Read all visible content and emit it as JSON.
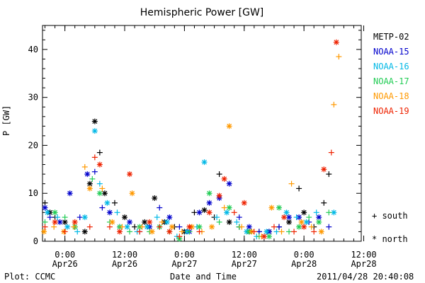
{
  "chart_data": {
    "type": "scatter",
    "title": "Hemispheric Power [GW]",
    "xlabel": "Date and Time",
    "ylabel": "P [GW]",
    "ylim": [
      0,
      45
    ],
    "xlim_hours": [
      -4.5,
      59.5
    ],
    "y_ticks": [
      0,
      10,
      20,
      30,
      40
    ],
    "x_ticks": [
      {
        "hour": 0,
        "time": "0:00",
        "date": "Apr26"
      },
      {
        "hour": 12,
        "time": "12:00",
        "date": "Apr26"
      },
      {
        "hour": 24,
        "time": "0:00",
        "date": "Apr27"
      },
      {
        "hour": 36,
        "time": "12:00",
        "date": "Apr27"
      },
      {
        "hour": 48,
        "time": "0:00",
        "date": "Apr28"
      },
      {
        "hour": 60,
        "time": "12:00",
        "date": "Apr28"
      }
    ],
    "legend_position": "right",
    "marker_key": {
      "south": "+ south",
      "north": "* north"
    },
    "series": [
      {
        "name": "METP-02",
        "color": "#000000",
        "points": [
          {
            "x": -4,
            "y": 8,
            "h": "S"
          },
          {
            "x": -3,
            "y": 6,
            "h": "N"
          },
          {
            "x": -2,
            "y": 5,
            "h": "S"
          },
          {
            "x": 0,
            "y": 4,
            "h": "N"
          },
          {
            "x": 2,
            "y": 3,
            "h": "S"
          },
          {
            "x": 4,
            "y": 2,
            "h": "N"
          },
          {
            "x": 5,
            "y": 12,
            "h": "N"
          },
          {
            "x": 6,
            "y": 25,
            "h": "N"
          },
          {
            "x": 7,
            "y": 18.5,
            "h": "S"
          },
          {
            "x": 8,
            "y": 10,
            "h": "N"
          },
          {
            "x": 10,
            "y": 8,
            "h": "S"
          },
          {
            "x": 12,
            "y": 5,
            "h": "N"
          },
          {
            "x": 14,
            "y": 3,
            "h": "S"
          },
          {
            "x": 16,
            "y": 4,
            "h": "N"
          },
          {
            "x": 18,
            "y": 9,
            "h": "N"
          },
          {
            "x": 20,
            "y": 4,
            "h": "N"
          },
          {
            "x": 22,
            "y": 3,
            "h": "S"
          },
          {
            "x": 24,
            "y": 2,
            "h": "N"
          },
          {
            "x": 26,
            "y": 6,
            "h": "S"
          },
          {
            "x": 28,
            "y": 6.5,
            "h": "N"
          },
          {
            "x": 30,
            "y": 5,
            "h": "S"
          },
          {
            "x": 31,
            "y": 14,
            "h": "S"
          },
          {
            "x": 33,
            "y": 4,
            "h": "N"
          },
          {
            "x": 35,
            "y": 3,
            "h": "S"
          },
          {
            "x": 37,
            "y": 2,
            "h": "N"
          },
          {
            "x": 39,
            "y": 2,
            "h": "S"
          },
          {
            "x": 41,
            "y": 2,
            "h": "N"
          },
          {
            "x": 43,
            "y": 3,
            "h": "S"
          },
          {
            "x": 45,
            "y": 4,
            "h": "N"
          },
          {
            "x": 47,
            "y": 11,
            "h": "S"
          },
          {
            "x": 48,
            "y": 6,
            "h": "N"
          },
          {
            "x": 50,
            "y": 3,
            "h": "S"
          },
          {
            "x": 52,
            "y": 8,
            "h": "S"
          },
          {
            "x": 53,
            "y": 14,
            "h": "S"
          }
        ]
      },
      {
        "name": "NOAA-15",
        "color": "#0000cc",
        "points": [
          {
            "x": -4,
            "y": 7,
            "h": "N"
          },
          {
            "x": -3,
            "y": 5,
            "h": "S"
          },
          {
            "x": -1,
            "y": 4,
            "h": "N"
          },
          {
            "x": 1,
            "y": 10,
            "h": "N"
          },
          {
            "x": 3,
            "y": 5,
            "h": "S"
          },
          {
            "x": 4.5,
            "y": 14,
            "h": "N"
          },
          {
            "x": 6,
            "y": 14.5,
            "h": "S"
          },
          {
            "x": 7.5,
            "y": 7,
            "h": "S"
          },
          {
            "x": 9,
            "y": 6,
            "h": "N"
          },
          {
            "x": 11,
            "y": 3,
            "h": "S"
          },
          {
            "x": 13,
            "y": 4,
            "h": "N"
          },
          {
            "x": 15,
            "y": 2,
            "h": "S"
          },
          {
            "x": 17,
            "y": 3,
            "h": "N"
          },
          {
            "x": 19,
            "y": 7,
            "h": "S"
          },
          {
            "x": 21,
            "y": 5,
            "h": "N"
          },
          {
            "x": 23,
            "y": 3,
            "h": "S"
          },
          {
            "x": 25,
            "y": 2,
            "h": "N"
          },
          {
            "x": 27,
            "y": 6,
            "h": "N"
          },
          {
            "x": 29,
            "y": 8,
            "h": "N"
          },
          {
            "x": 31,
            "y": 9,
            "h": "N"
          },
          {
            "x": 33,
            "y": 12,
            "h": "N"
          },
          {
            "x": 35,
            "y": 5,
            "h": "S"
          },
          {
            "x": 37,
            "y": 3,
            "h": "N"
          },
          {
            "x": 39,
            "y": 2,
            "h": "S"
          },
          {
            "x": 41,
            "y": 2,
            "h": "N"
          },
          {
            "x": 43,
            "y": 3,
            "h": "S"
          },
          {
            "x": 45,
            "y": 5,
            "h": "N"
          },
          {
            "x": 47,
            "y": 5,
            "h": "N"
          },
          {
            "x": 49,
            "y": 4,
            "h": "S"
          },
          {
            "x": 51,
            "y": 5,
            "h": "N"
          },
          {
            "x": 53,
            "y": 3,
            "h": "S"
          }
        ]
      },
      {
        "name": "NOAA-16",
        "color": "#00b8e6",
        "points": [
          {
            "x": -3.5,
            "y": 6,
            "h": "N"
          },
          {
            "x": -1.5,
            "y": 5,
            "h": "S"
          },
          {
            "x": 0.5,
            "y": 3,
            "h": "N"
          },
          {
            "x": 2.5,
            "y": 2,
            "h": "S"
          },
          {
            "x": 4,
            "y": 5,
            "h": "N"
          },
          {
            "x": 6,
            "y": 23,
            "h": "N"
          },
          {
            "x": 7,
            "y": 12,
            "h": "S"
          },
          {
            "x": 8.5,
            "y": 8,
            "h": "N"
          },
          {
            "x": 10.5,
            "y": 6,
            "h": "S"
          },
          {
            "x": 12.5,
            "y": 3,
            "h": "N"
          },
          {
            "x": 14.5,
            "y": 2,
            "h": "S"
          },
          {
            "x": 16.5,
            "y": 3,
            "h": "N"
          },
          {
            "x": 18.5,
            "y": 5,
            "h": "S"
          },
          {
            "x": 20.5,
            "y": 4,
            "h": "N"
          },
          {
            "x": 22.5,
            "y": 1,
            "h": "S"
          },
          {
            "x": 24.5,
            "y": 2,
            "h": "N"
          },
          {
            "x": 26.5,
            "y": 3,
            "h": "S"
          },
          {
            "x": 28,
            "y": 16.5,
            "h": "N"
          },
          {
            "x": 30.5,
            "y": 5,
            "h": "S"
          },
          {
            "x": 32.5,
            "y": 6,
            "h": "N"
          },
          {
            "x": 34.5,
            "y": 4,
            "h": "S"
          },
          {
            "x": 36.5,
            "y": 2,
            "h": "N"
          },
          {
            "x": 38.5,
            "y": 1,
            "h": "S"
          },
          {
            "x": 40.5,
            "y": 2,
            "h": "N"
          },
          {
            "x": 42.5,
            "y": 2,
            "h": "S"
          },
          {
            "x": 44.5,
            "y": 6,
            "h": "N"
          },
          {
            "x": 46.5,
            "y": 5,
            "h": "S"
          },
          {
            "x": 48.5,
            "y": 4,
            "h": "N"
          },
          {
            "x": 50.5,
            "y": 6,
            "h": "S"
          },
          {
            "x": 54,
            "y": 6,
            "h": "N"
          }
        ]
      },
      {
        "name": "NOAA-17",
        "color": "#22cc55",
        "points": [
          {
            "x": -4,
            "y": 4,
            "h": "S"
          },
          {
            "x": -2,
            "y": 6,
            "h": "N"
          },
          {
            "x": 0,
            "y": 5,
            "h": "S"
          },
          {
            "x": 2,
            "y": 3,
            "h": "N"
          },
          {
            "x": 5.5,
            "y": 13,
            "h": "S"
          },
          {
            "x": 7,
            "y": 10,
            "h": "N"
          },
          {
            "x": 9,
            "y": 4,
            "h": "S"
          },
          {
            "x": 11,
            "y": 3,
            "h": "N"
          },
          {
            "x": 13,
            "y": 2,
            "h": "S"
          },
          {
            "x": 15,
            "y": 3,
            "h": "N"
          },
          {
            "x": 17,
            "y": 2,
            "h": "S"
          },
          {
            "x": 19,
            "y": 3,
            "h": "N"
          },
          {
            "x": 21,
            "y": 2,
            "h": "S"
          },
          {
            "x": 23,
            "y": 0.5,
            "h": "N"
          },
          {
            "x": 25,
            "y": 2,
            "h": "S"
          },
          {
            "x": 27,
            "y": 3,
            "h": "N"
          },
          {
            "x": 29,
            "y": 10,
            "h": "N"
          },
          {
            "x": 31,
            "y": 4,
            "h": "S"
          },
          {
            "x": 33,
            "y": 7,
            "h": "N"
          },
          {
            "x": 35,
            "y": 3,
            "h": "S"
          },
          {
            "x": 37,
            "y": 2,
            "h": "N"
          },
          {
            "x": 39,
            "y": 1,
            "h": "S"
          },
          {
            "x": 41,
            "y": 1,
            "h": "N"
          },
          {
            "x": 43,
            "y": 7,
            "h": "N"
          },
          {
            "x": 45,
            "y": 2,
            "h": "S"
          },
          {
            "x": 47,
            "y": 3,
            "h": "N"
          },
          {
            "x": 49,
            "y": 5,
            "h": "S"
          },
          {
            "x": 51,
            "y": 4,
            "h": "N"
          },
          {
            "x": 53,
            "y": 6,
            "h": "S"
          }
        ]
      },
      {
        "name": "NOAA-18",
        "color": "#ff9900",
        "points": [
          {
            "x": -4.2,
            "y": 2,
            "h": "N"
          },
          {
            "x": -2.2,
            "y": 3,
            "h": "S"
          },
          {
            "x": -0.2,
            "y": 2,
            "h": "N"
          },
          {
            "x": 1.8,
            "y": 3,
            "h": "S"
          },
          {
            "x": 4,
            "y": 15.5,
            "h": "S"
          },
          {
            "x": 5,
            "y": 11,
            "h": "N"
          },
          {
            "x": 7.5,
            "y": 11,
            "h": "S"
          },
          {
            "x": 9.5,
            "y": 4,
            "h": "N"
          },
          {
            "x": 11.5,
            "y": 3,
            "h": "S"
          },
          {
            "x": 13.5,
            "y": 10,
            "h": "N"
          },
          {
            "x": 15.5,
            "y": 3,
            "h": "S"
          },
          {
            "x": 17.5,
            "y": 2,
            "h": "N"
          },
          {
            "x": 19.5,
            "y": 4,
            "h": "S"
          },
          {
            "x": 21.5,
            "y": 3,
            "h": "N"
          },
          {
            "x": 23.5,
            "y": 2,
            "h": "S"
          },
          {
            "x": 25.5,
            "y": 3,
            "h": "N"
          },
          {
            "x": 27.5,
            "y": 2,
            "h": "S"
          },
          {
            "x": 29.5,
            "y": 3,
            "h": "N"
          },
          {
            "x": 32,
            "y": 7,
            "h": "S"
          },
          {
            "x": 33,
            "y": 24,
            "h": "N"
          },
          {
            "x": 35.5,
            "y": 3,
            "h": "S"
          },
          {
            "x": 37.5,
            "y": 2,
            "h": "N"
          },
          {
            "x": 39.5,
            "y": 1,
            "h": "S"
          },
          {
            "x": 41.5,
            "y": 7,
            "h": "N"
          },
          {
            "x": 43.5,
            "y": 2,
            "h": "S"
          },
          {
            "x": 45.5,
            "y": 12,
            "h": "S"
          },
          {
            "x": 47.5,
            "y": 4,
            "h": "N"
          },
          {
            "x": 49.5,
            "y": 3,
            "h": "S"
          },
          {
            "x": 51.5,
            "y": 2,
            "h": "N"
          },
          {
            "x": 54,
            "y": 28.5,
            "h": "S"
          },
          {
            "x": 55,
            "y": 38.5,
            "h": "S"
          }
        ]
      },
      {
        "name": "NOAA-19",
        "color": "#ee2200",
        "points": [
          {
            "x": -4,
            "y": 3,
            "h": "S"
          },
          {
            "x": -2,
            "y": 4,
            "h": "N"
          },
          {
            "x": 0,
            "y": 2,
            "h": "S"
          },
          {
            "x": 2,
            "y": 4,
            "h": "N"
          },
          {
            "x": 5,
            "y": 3,
            "h": "S"
          },
          {
            "x": 6,
            "y": 17.5,
            "h": "S"
          },
          {
            "x": 7,
            "y": 16,
            "h": "N"
          },
          {
            "x": 9,
            "y": 3,
            "h": "S"
          },
          {
            "x": 11,
            "y": 2,
            "h": "N"
          },
          {
            "x": 13,
            "y": 14,
            "h": "N"
          },
          {
            "x": 15,
            "y": 2,
            "h": "S"
          },
          {
            "x": 17,
            "y": 4,
            "h": "N"
          },
          {
            "x": 19,
            "y": 3,
            "h": "S"
          },
          {
            "x": 21,
            "y": 2,
            "h": "N"
          },
          {
            "x": 23,
            "y": 1,
            "h": "S"
          },
          {
            "x": 25,
            "y": 3,
            "h": "N"
          },
          {
            "x": 27,
            "y": 2,
            "h": "S"
          },
          {
            "x": 29,
            "y": 6,
            "h": "N"
          },
          {
            "x": 31,
            "y": 9.5,
            "h": "N"
          },
          {
            "x": 32,
            "y": 13,
            "h": "N"
          },
          {
            "x": 34,
            "y": 6,
            "h": "S"
          },
          {
            "x": 36,
            "y": 8,
            "h": "N"
          },
          {
            "x": 38,
            "y": 2,
            "h": "S"
          },
          {
            "x": 40,
            "y": 1,
            "h": "N"
          },
          {
            "x": 42,
            "y": 3,
            "h": "S"
          },
          {
            "x": 44,
            "y": 5,
            "h": "N"
          },
          {
            "x": 46,
            "y": 2,
            "h": "S"
          },
          {
            "x": 48,
            "y": 3,
            "h": "N"
          },
          {
            "x": 50,
            "y": 2,
            "h": "S"
          },
          {
            "x": 52,
            "y": 15,
            "h": "N"
          },
          {
            "x": 53.5,
            "y": 18.5,
            "h": "S"
          },
          {
            "x": 54.5,
            "y": 41.5,
            "h": "N"
          }
        ]
      }
    ]
  },
  "footer": {
    "left": "Plot: CCMC",
    "right": "2011/04/28 20:40:08"
  }
}
